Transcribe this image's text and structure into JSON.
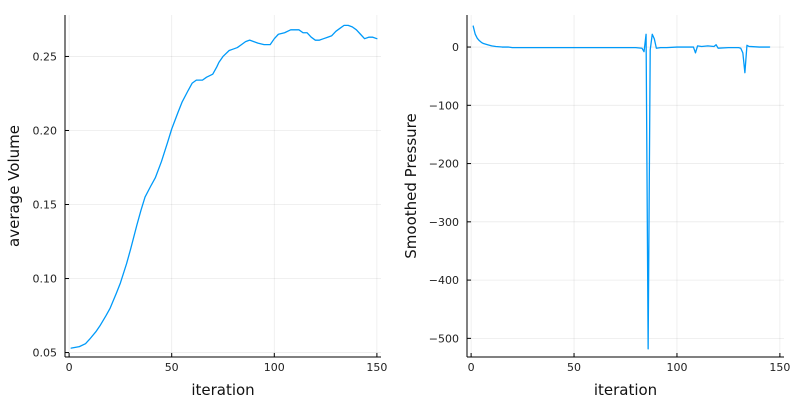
{
  "chart_data": [
    {
      "type": "line",
      "title": "",
      "xlabel": "iteration",
      "ylabel": "average Volume",
      "xlim": [
        -2,
        152
      ],
      "ylim": [
        0.047,
        0.278
      ],
      "xticks": [
        0,
        50,
        100,
        150
      ],
      "yticks": [
        0.05,
        0.1,
        0.15,
        0.2,
        0.25
      ],
      "ytick_labels": [
        "0.05",
        "0.10",
        "0.15",
        "0.20",
        "0.25"
      ],
      "grid": true,
      "legend": "none",
      "color": "#009af9",
      "series": [
        {
          "x": [
            1,
            5,
            8,
            10,
            13,
            15,
            18,
            20,
            23,
            25,
            28,
            30,
            33,
            35,
            37,
            40,
            42,
            45,
            48,
            50,
            53,
            55,
            58,
            60,
            62,
            63,
            65,
            67,
            70,
            72,
            73,
            75,
            78,
            80,
            82,
            84,
            86,
            88,
            90,
            92,
            95,
            98,
            100,
            102,
            105,
            108,
            110,
            112,
            114,
            116,
            118,
            120,
            122,
            124,
            126,
            128,
            130,
            132,
            134,
            136,
            138,
            140,
            142,
            144,
            146,
            148,
            150
          ],
          "y": [
            0.053,
            0.054,
            0.056,
            0.059,
            0.064,
            0.068,
            0.075,
            0.08,
            0.09,
            0.097,
            0.11,
            0.12,
            0.136,
            0.146,
            0.155,
            0.163,
            0.168,
            0.179,
            0.192,
            0.201,
            0.212,
            0.219,
            0.227,
            0.232,
            0.234,
            0.234,
            0.234,
            0.236,
            0.238,
            0.243,
            0.246,
            0.25,
            0.254,
            0.255,
            0.256,
            0.258,
            0.26,
            0.261,
            0.26,
            0.259,
            0.258,
            0.258,
            0.262,
            0.265,
            0.266,
            0.268,
            0.268,
            0.268,
            0.266,
            0.266,
            0.263,
            0.261,
            0.261,
            0.262,
            0.263,
            0.264,
            0.267,
            0.269,
            0.271,
            0.271,
            0.27,
            0.268,
            0.265,
            0.262,
            0.263,
            0.263,
            0.262
          ]
        }
      ]
    },
    {
      "type": "line",
      "title": "",
      "xlabel": "iteration",
      "ylabel": "Smoothed Pressure",
      "xlim": [
        -2,
        152
      ],
      "ylim": [
        -532,
        55
      ],
      "xticks": [
        0,
        50,
        100,
        150
      ],
      "yticks": [
        0,
        -100,
        -200,
        -300,
        -400,
        -500
      ],
      "ytick_labels": [
        "0",
        "−100",
        "−200",
        "−300",
        "−400",
        "−500"
      ],
      "grid": true,
      "legend": "none",
      "color": "#009af9",
      "series": [
        {
          "x": [
            1,
            2,
            3,
            4,
            5,
            6,
            8,
            10,
            12,
            15,
            18,
            20,
            25,
            30,
            40,
            50,
            60,
            70,
            80,
            83,
            84,
            85,
            86,
            87,
            88,
            89,
            90,
            92,
            95,
            100,
            105,
            108,
            109,
            110,
            112,
            115,
            118,
            119,
            120,
            125,
            130,
            131,
            132,
            133,
            134,
            135,
            140,
            145
          ],
          "y": [
            36,
            22,
            15,
            11,
            8,
            6,
            4,
            2,
            1,
            0,
            0,
            -1,
            -1,
            -1,
            -1,
            -1,
            -1,
            -1,
            -1,
            -2,
            -8,
            22,
            -518,
            -5,
            22,
            14,
            -2,
            -1,
            -1,
            0,
            0,
            0,
            -10,
            2,
            1,
            2,
            1,
            4,
            -2,
            -1,
            -1,
            -2,
            -10,
            -44,
            3,
            1,
            0,
            0
          ]
        }
      ]
    }
  ]
}
